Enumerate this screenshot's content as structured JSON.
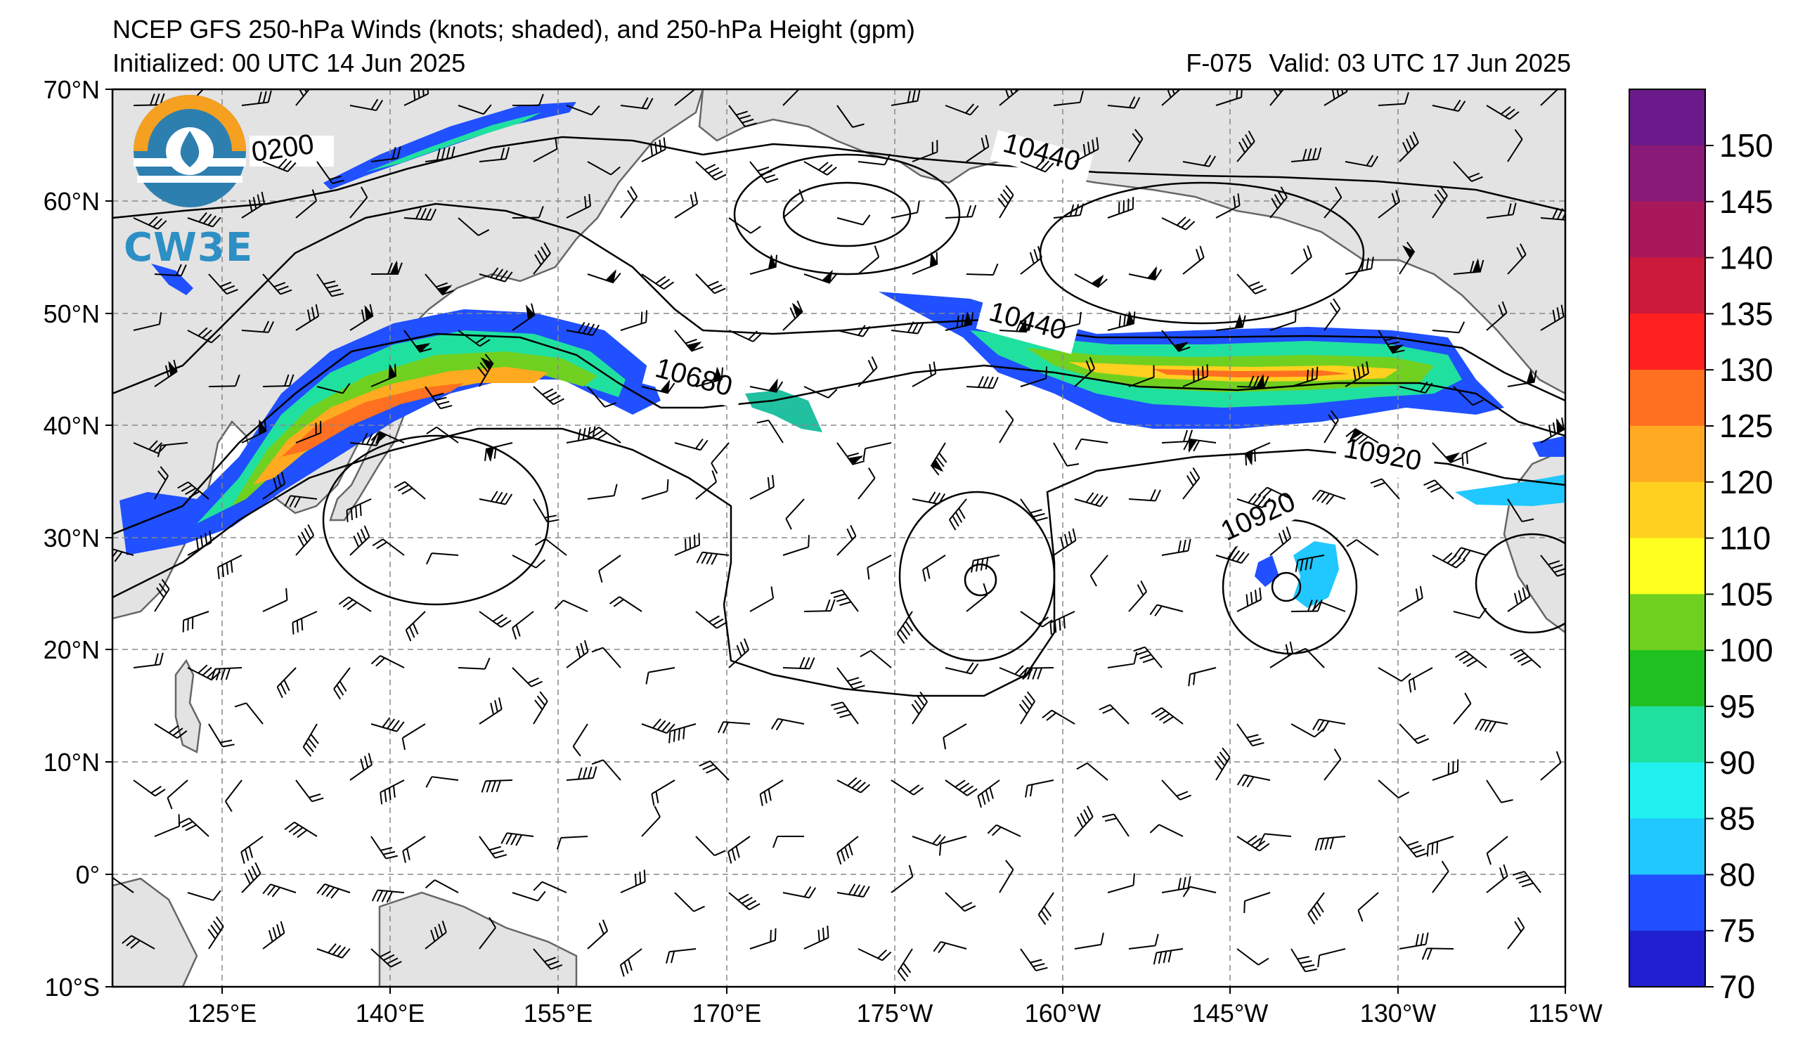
{
  "header": {
    "title": "NCEP GFS 250-hPa Winds (knots; shaded), and 250-hPa Height (gpm)",
    "initialized": "Initialized: 00 UTC 14 Jun 2025",
    "forecast_hour": "F-075",
    "valid": "Valid: 03 UTC 17 Jun 2025"
  },
  "logo": {
    "text": "CW3E",
    "icon": "cw3e-water-drop-logo-icon"
  },
  "axes": {
    "lat_labels": [
      "70°N",
      "60°N",
      "50°N",
      "40°N",
      "30°N",
      "20°N",
      "10°N",
      "0°",
      "10°S"
    ],
    "lon_labels": [
      "125°E",
      "140°E",
      "155°E",
      "170°E",
      "175°W",
      "160°W",
      "145°W",
      "130°W",
      "115°W"
    ]
  },
  "contour_labels": [
    "0200",
    "10440",
    "10440",
    "10680",
    "10920",
    "10920"
  ],
  "colorbar": {
    "labels": [
      "150",
      "145",
      "140",
      "135",
      "130",
      "125",
      "120",
      "110",
      "105",
      "100",
      "95",
      "90",
      "85",
      "80",
      "75",
      "70"
    ],
    "colors": [
      "#6a1a8a",
      "#8a1a78",
      "#a8185a",
      "#cc1a3a",
      "#ff2020",
      "#ff7020",
      "#ffaa20",
      "#ffd020",
      "#ffff20",
      "#70d020",
      "#20c020",
      "#20e0a0",
      "#20f0f0",
      "#20c8ff",
      "#2050ff",
      "#2020d0"
    ]
  },
  "colors": {
    "land": "#e3e3e3",
    "coast": "#666666",
    "grid": "#888888"
  }
}
